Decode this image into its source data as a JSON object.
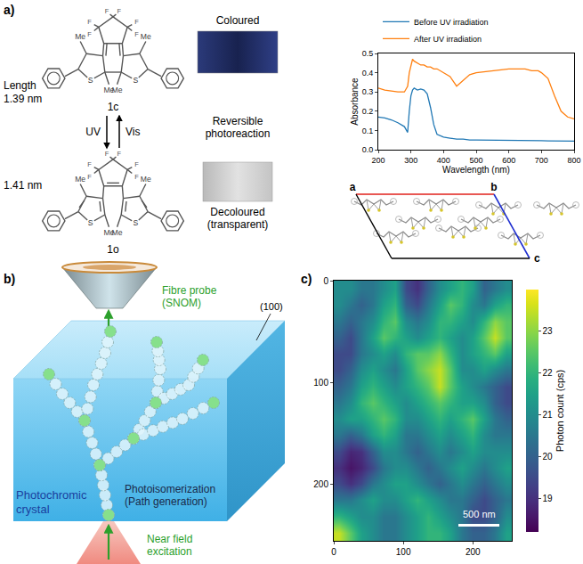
{
  "figure": {
    "panel_labels": [
      "a)",
      "b)",
      "c)"
    ],
    "atom_labels": {
      "fluorine": "F",
      "methyl": "Me",
      "sulfur": "S"
    },
    "closed_form": {
      "label": "1c",
      "length_title": "Length",
      "length": "1.39 nm",
      "photo_caption": [
        "Coloured"
      ]
    },
    "open_form": {
      "label": "1o",
      "length": "1.41 nm",
      "photo_caption": [
        "Decoloured",
        "(transparent)"
      ]
    },
    "photoreaction": {
      "forward": "UV",
      "reverse": "Vis",
      "caption": [
        "Reversible",
        "photoreaction"
      ]
    },
    "unit_cell_axes": [
      "a",
      "b",
      "c"
    ],
    "scheme": {
      "probe": [
        "Fibre probe",
        "(SNOM)"
      ],
      "surface": "(100)",
      "crystal": [
        "Photochromic",
        "crystal"
      ],
      "path": [
        "Photoisomerization",
        "(Path generation)"
      ],
      "excitation": [
        "Near field",
        "excitation"
      ]
    }
  },
  "chart_data": [
    {
      "type": "line",
      "x_label": "Wavelength (nm)",
      "y_label": "Absorbance",
      "x": [
        200,
        220,
        240,
        260,
        280,
        290,
        295,
        300,
        305,
        310,
        320,
        330,
        340,
        350,
        360,
        370,
        380,
        400,
        420,
        440,
        460,
        480,
        500,
        550,
        600,
        650,
        670,
        690,
        700,
        720,
        740,
        760,
        780,
        800
      ],
      "series": [
        {
          "name": "Before UV irradiation",
          "color": "#1f77b4",
          "values": [
            0.17,
            0.165,
            0.155,
            0.14,
            0.12,
            0.09,
            0.2,
            0.28,
            0.31,
            0.32,
            0.31,
            0.315,
            0.31,
            0.29,
            0.22,
            0.13,
            0.08,
            0.065,
            0.06,
            0.055,
            0.055,
            0.05,
            0.05,
            0.05,
            0.05,
            0.048,
            0.048,
            0.047,
            0.047,
            0.046,
            0.045,
            0.045,
            0.045,
            0.045
          ]
        },
        {
          "name": "After UV irradiation",
          "color": "#ff7f0e",
          "values": [
            0.32,
            0.31,
            0.305,
            0.3,
            0.3,
            0.33,
            0.4,
            0.44,
            0.47,
            0.46,
            0.45,
            0.44,
            0.44,
            0.43,
            0.43,
            0.42,
            0.42,
            0.4,
            0.38,
            0.33,
            0.36,
            0.39,
            0.4,
            0.41,
            0.42,
            0.42,
            0.41,
            0.41,
            0.4,
            0.37,
            0.28,
            0.2,
            0.17,
            0.16
          ]
        }
      ],
      "xlim": [
        200,
        800
      ],
      "ylim": [
        0,
        0.5
      ],
      "xticks": [
        200,
        300,
        400,
        500,
        600,
        700,
        800
      ],
      "yticks": [
        {
          "value": 0,
          "label": "0.0"
        },
        0.1,
        0.2,
        0.3,
        0.4,
        0.5
      ],
      "legend": "top",
      "grid": false
    },
    {
      "type": "heatmap",
      "x": [
        8,
        24,
        40,
        56,
        72,
        88,
        104,
        120,
        136,
        152,
        168,
        184,
        200,
        216,
        232,
        248
      ],
      "y": [
        8,
        24,
        40,
        56,
        72,
        88,
        104,
        120,
        136,
        152,
        168,
        184,
        200,
        216,
        232,
        248
      ],
      "z": [
        [
          21,
          21,
          20.5,
          20.5,
          21,
          21.5,
          19.5,
          19,
          20,
          21,
          21.5,
          22,
          21.5,
          20,
          20.5,
          21
        ],
        [
          21,
          20.5,
          20,
          20.5,
          21.5,
          22,
          20,
          19.5,
          20.5,
          21.5,
          22.5,
          22,
          21,
          20.5,
          21.5,
          22
        ],
        [
          20.5,
          20,
          20.5,
          21,
          22,
          22.5,
          21,
          20.5,
          21,
          22,
          22,
          21.5,
          21,
          22,
          23,
          22.5
        ],
        [
          20,
          19.5,
          20.5,
          21.5,
          22.5,
          22,
          21.5,
          21,
          21.5,
          22,
          21.5,
          21,
          21.5,
          22.5,
          23.5,
          22.5
        ],
        [
          19.5,
          19.5,
          20.5,
          21,
          21.5,
          21,
          22,
          22.5,
          22.5,
          23,
          22,
          21,
          21.5,
          22,
          22.5,
          21.5
        ],
        [
          19.5,
          20,
          21,
          21.5,
          21,
          20.5,
          21.5,
          22.5,
          23,
          23.5,
          22.5,
          21,
          21,
          21.5,
          21,
          20.5
        ],
        [
          20,
          20.5,
          21.5,
          22,
          21.5,
          21,
          21.5,
          22,
          22.5,
          23.5,
          22.5,
          21.5,
          21,
          20.5,
          20,
          19.5
        ],
        [
          20.5,
          21,
          22,
          22.5,
          22,
          21.5,
          21,
          21.5,
          22,
          22.5,
          22,
          21.5,
          21.5,
          21,
          20,
          19.5
        ],
        [
          21,
          21.5,
          21.5,
          22,
          22.5,
          22,
          21,
          21,
          21.5,
          22,
          21.5,
          22,
          22.5,
          21.5,
          20.5,
          20
        ],
        [
          20.5,
          20,
          20.5,
          21.5,
          22,
          21.5,
          20.5,
          20.5,
          21,
          21.5,
          21,
          21.5,
          22,
          21,
          20.5,
          20.5
        ],
        [
          19.5,
          18.8,
          19,
          20,
          21,
          21,
          20.5,
          20,
          20.5,
          21,
          20.5,
          21,
          21.5,
          21,
          21,
          21
        ],
        [
          19,
          18.5,
          18.8,
          19.5,
          20.5,
          21,
          21,
          20.5,
          20,
          20.5,
          21,
          21.5,
          21,
          20.5,
          21,
          21.5
        ],
        [
          19.5,
          19,
          19.5,
          20.5,
          21,
          21.5,
          21.5,
          21,
          20.5,
          20,
          20.5,
          21,
          20.5,
          20,
          20.5,
          21
        ],
        [
          20.5,
          20.5,
          21,
          21.5,
          21,
          21,
          21.5,
          22,
          21.5,
          21,
          20.5,
          20.5,
          20,
          19.5,
          20,
          20.5
        ],
        [
          22,
          21.5,
          21,
          21,
          20.5,
          20.5,
          21,
          21.5,
          22,
          21.5,
          21,
          20.5,
          19.5,
          19.5,
          20,
          21
        ],
        [
          23.5,
          22.5,
          21.5,
          21,
          20.5,
          20.5,
          21,
          21.5,
          22,
          22,
          21.5,
          20.5,
          20,
          20,
          20.5,
          21.5
        ]
      ],
      "xlim": [
        0,
        256
      ],
      "ylim": [
        256,
        0
      ],
      "xticks": [
        0,
        100,
        200
      ],
      "yticks": [
        0,
        100,
        200
      ],
      "color": "Viridis",
      "colorbar": {
        "title": "Photon count (cps)",
        "zlim": [
          18.2,
          24
        ],
        "ticks": [
          19,
          20,
          21,
          22,
          23
        ]
      },
      "annotations": [
        "500 nm"
      ],
      "grid": false
    }
  ]
}
